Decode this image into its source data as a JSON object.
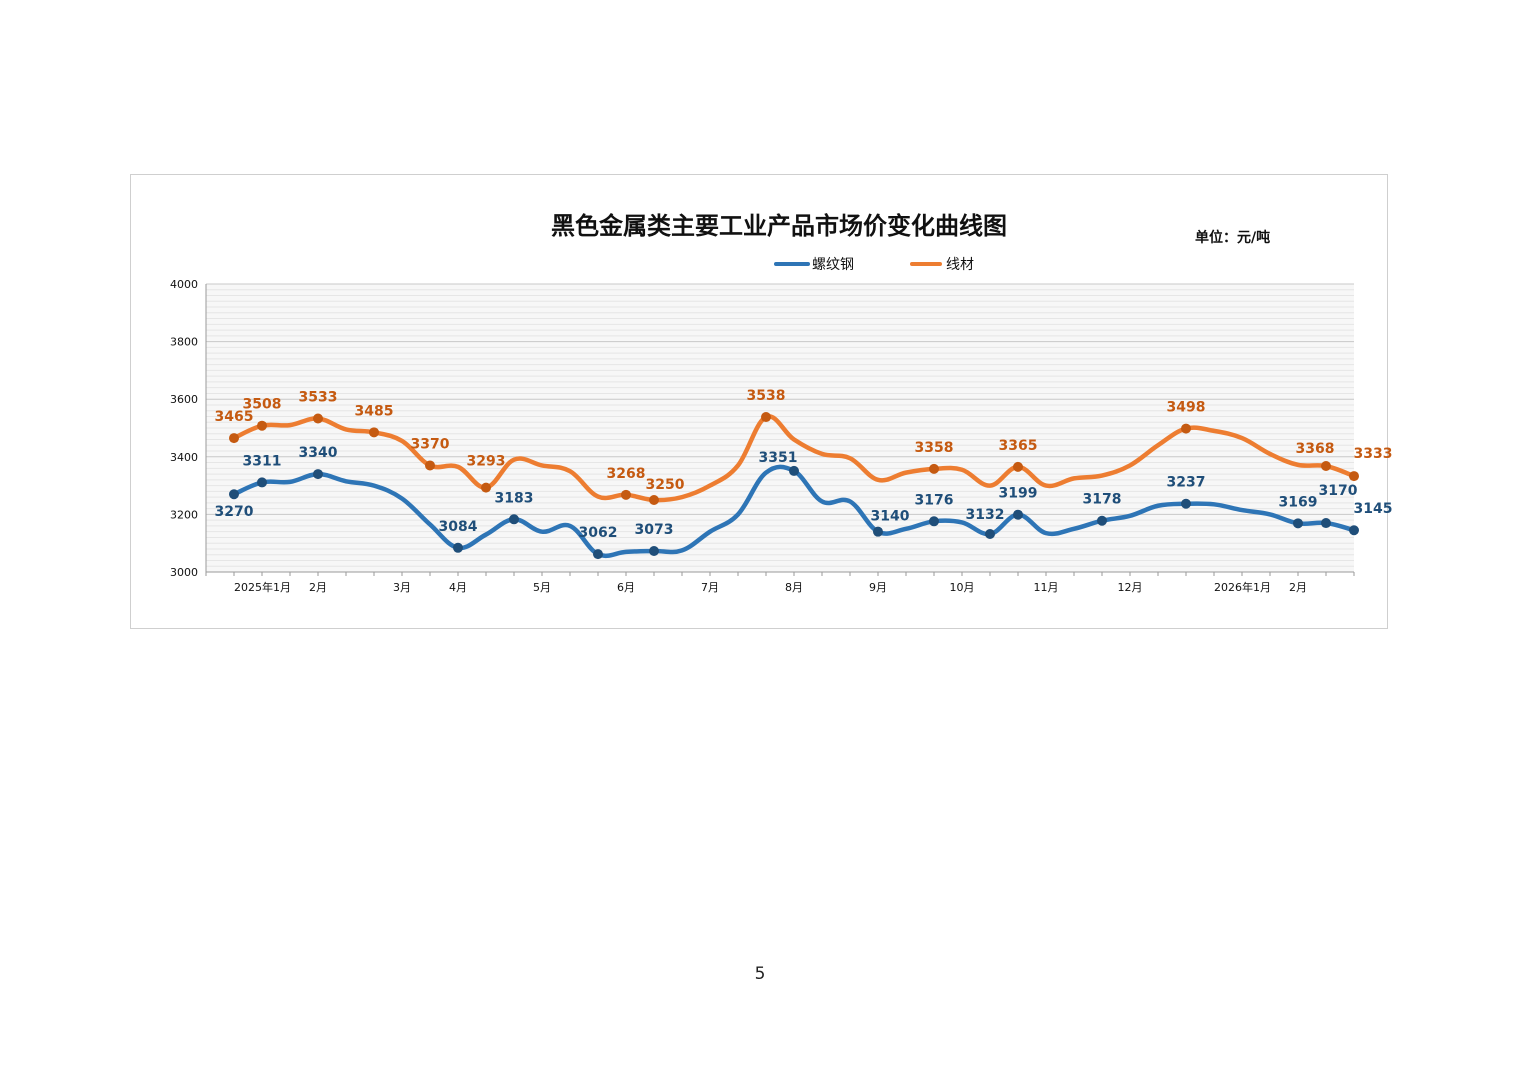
{
  "page_number": "5",
  "chart_data": {
    "type": "line",
    "title": "黑色金属类主要工业产品市场价变化曲线图",
    "unit": "单位：元/吨",
    "xlabel": "",
    "ylabel": "",
    "ylim": [
      3000,
      4000
    ],
    "yticks": [
      3000,
      3200,
      3400,
      3600,
      3800,
      4000
    ],
    "grid": true,
    "legend_position": "top",
    "x_labels": [
      "2025年1月",
      "2月",
      "3月",
      "4月",
      "5月",
      "6月",
      "7月",
      "8月",
      "9月",
      "10月",
      "11月",
      "12月",
      "2026年1月",
      "2月"
    ],
    "series": [
      {
        "name": "螺纹钢",
        "color": "#2e75b6",
        "marker_color": "#1f4e79",
        "label_color": "#1f4e79",
        "points": [
          {
            "x": 0.5,
            "y": 3270,
            "labeled": true
          },
          {
            "x": 1.0,
            "y": 3311,
            "labeled": true
          },
          {
            "x": 1.5,
            "y": 3313,
            "labeled": false
          },
          {
            "x": 2.0,
            "y": 3340,
            "labeled": true
          },
          {
            "x": 2.5,
            "y": 3315,
            "labeled": false
          },
          {
            "x": 3.0,
            "y": 3300,
            "labeled": false
          },
          {
            "x": 3.5,
            "y": 3255,
            "labeled": false
          },
          {
            "x": 4.0,
            "y": 3165,
            "labeled": false
          },
          {
            "x": 4.5,
            "y": 3084,
            "labeled": true
          },
          {
            "x": 5.0,
            "y": 3130,
            "labeled": false
          },
          {
            "x": 5.5,
            "y": 3183,
            "labeled": true
          },
          {
            "x": 6.0,
            "y": 3140,
            "labeled": false
          },
          {
            "x": 6.5,
            "y": 3160,
            "labeled": false
          },
          {
            "x": 7.0,
            "y": 3062,
            "labeled": true
          },
          {
            "x": 7.5,
            "y": 3070,
            "labeled": false
          },
          {
            "x": 8.0,
            "y": 3073,
            "labeled": true
          },
          {
            "x": 8.5,
            "y": 3075,
            "labeled": false
          },
          {
            "x": 9.0,
            "y": 3140,
            "labeled": false
          },
          {
            "x": 9.5,
            "y": 3200,
            "labeled": false
          },
          {
            "x": 10.0,
            "y": 3345,
            "labeled": false
          },
          {
            "x": 10.5,
            "y": 3351,
            "labeled": true
          },
          {
            "x": 11.0,
            "y": 3245,
            "labeled": false
          },
          {
            "x": 11.5,
            "y": 3245,
            "labeled": false
          },
          {
            "x": 12.0,
            "y": 3140,
            "labeled": true
          },
          {
            "x": 12.5,
            "y": 3150,
            "labeled": false
          },
          {
            "x": 13.0,
            "y": 3176,
            "labeled": true
          },
          {
            "x": 13.5,
            "y": 3172,
            "labeled": false
          },
          {
            "x": 14.0,
            "y": 3132,
            "labeled": true
          },
          {
            "x": 14.5,
            "y": 3199,
            "labeled": true
          },
          {
            "x": 15.0,
            "y": 3135,
            "labeled": false
          },
          {
            "x": 15.5,
            "y": 3150,
            "labeled": false
          },
          {
            "x": 16.0,
            "y": 3178,
            "labeled": true
          },
          {
            "x": 16.5,
            "y": 3195,
            "labeled": false
          },
          {
            "x": 17.0,
            "y": 3230,
            "labeled": false
          },
          {
            "x": 17.5,
            "y": 3237,
            "labeled": true
          },
          {
            "x": 18.0,
            "y": 3235,
            "labeled": false
          },
          {
            "x": 18.5,
            "y": 3215,
            "labeled": false
          },
          {
            "x": 19.0,
            "y": 3200,
            "labeled": false
          },
          {
            "x": 19.5,
            "y": 3169,
            "labeled": true
          },
          {
            "x": 20.0,
            "y": 3170,
            "labeled": true
          },
          {
            "x": 20.5,
            "y": 3145,
            "labeled": true
          }
        ]
      },
      {
        "name": "线材",
        "color": "#ed7d31",
        "marker_color": "#c55a11",
        "label_color": "#c55a11",
        "points": [
          {
            "x": 0.5,
            "y": 3465,
            "labeled": true
          },
          {
            "x": 1.0,
            "y": 3508,
            "labeled": true
          },
          {
            "x": 1.5,
            "y": 3510,
            "labeled": false
          },
          {
            "x": 2.0,
            "y": 3533,
            "labeled": true
          },
          {
            "x": 2.5,
            "y": 3495,
            "labeled": false
          },
          {
            "x": 3.0,
            "y": 3485,
            "labeled": true
          },
          {
            "x": 3.5,
            "y": 3455,
            "labeled": false
          },
          {
            "x": 4.0,
            "y": 3370,
            "labeled": true
          },
          {
            "x": 4.5,
            "y": 3365,
            "labeled": false
          },
          {
            "x": 5.0,
            "y": 3293,
            "labeled": true
          },
          {
            "x": 5.5,
            "y": 3390,
            "labeled": false
          },
          {
            "x": 6.0,
            "y": 3370,
            "labeled": false
          },
          {
            "x": 6.5,
            "y": 3350,
            "labeled": false
          },
          {
            "x": 7.0,
            "y": 3262,
            "labeled": false
          },
          {
            "x": 7.5,
            "y": 3268,
            "labeled": true
          },
          {
            "x": 8.0,
            "y": 3250,
            "labeled": true
          },
          {
            "x": 8.5,
            "y": 3260,
            "labeled": false
          },
          {
            "x": 9.0,
            "y": 3300,
            "labeled": false
          },
          {
            "x": 9.5,
            "y": 3370,
            "labeled": false
          },
          {
            "x": 10.0,
            "y": 3538,
            "labeled": true
          },
          {
            "x": 10.5,
            "y": 3460,
            "labeled": false
          },
          {
            "x": 11.0,
            "y": 3410,
            "labeled": false
          },
          {
            "x": 11.5,
            "y": 3395,
            "labeled": false
          },
          {
            "x": 12.0,
            "y": 3320,
            "labeled": false
          },
          {
            "x": 12.5,
            "y": 3345,
            "labeled": false
          },
          {
            "x": 13.0,
            "y": 3358,
            "labeled": true
          },
          {
            "x": 13.5,
            "y": 3355,
            "labeled": false
          },
          {
            "x": 14.0,
            "y": 3300,
            "labeled": false
          },
          {
            "x": 14.5,
            "y": 3365,
            "labeled": true
          },
          {
            "x": 15.0,
            "y": 3300,
            "labeled": false
          },
          {
            "x": 15.5,
            "y": 3325,
            "labeled": false
          },
          {
            "x": 16.0,
            "y": 3335,
            "labeled": false
          },
          {
            "x": 16.5,
            "y": 3370,
            "labeled": false
          },
          {
            "x": 17.0,
            "y": 3440,
            "labeled": false
          },
          {
            "x": 17.5,
            "y": 3498,
            "labeled": true
          },
          {
            "x": 18.0,
            "y": 3490,
            "labeled": false
          },
          {
            "x": 18.5,
            "y": 3465,
            "labeled": false
          },
          {
            "x": 19.0,
            "y": 3410,
            "labeled": false
          },
          {
            "x": 19.5,
            "y": 3372,
            "labeled": false
          },
          {
            "x": 20.0,
            "y": 3368,
            "labeled": true
          },
          {
            "x": 20.5,
            "y": 3333,
            "labeled": true
          }
        ]
      }
    ]
  }
}
